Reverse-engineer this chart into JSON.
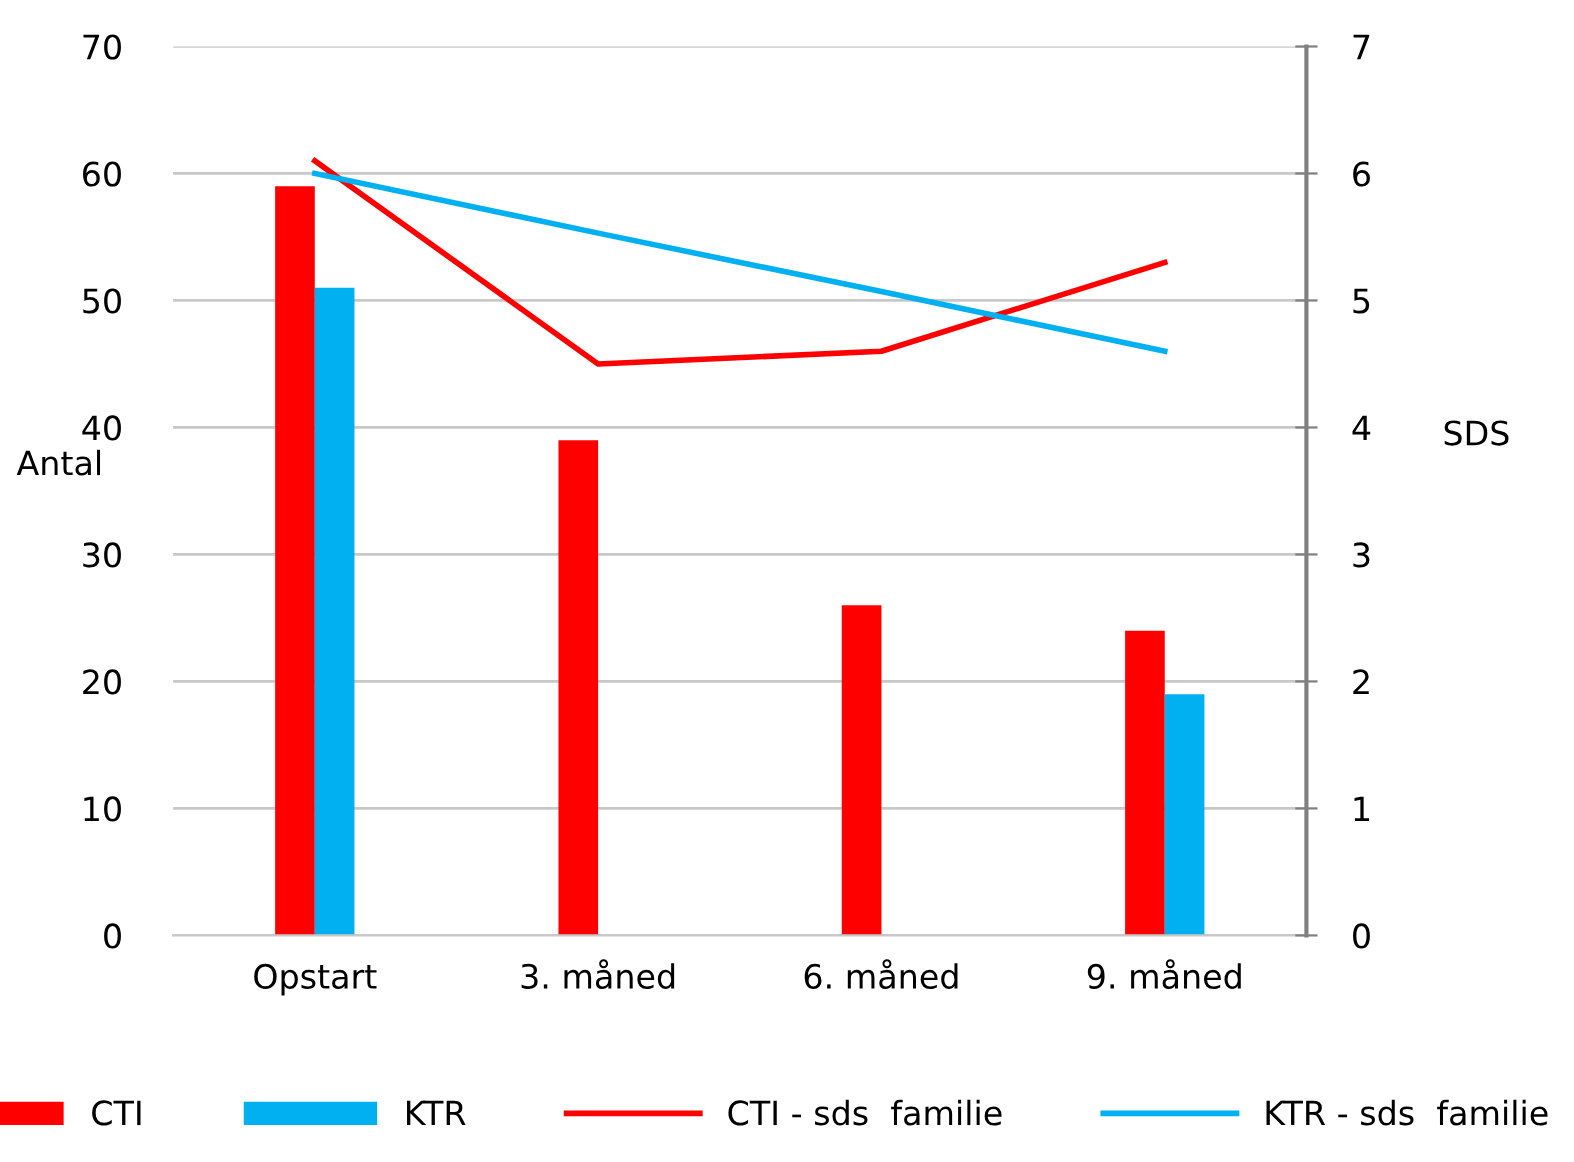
{
  "chart_data": {
    "type": "bar",
    "categories": [
      "Opstart",
      "3. måned",
      "6. måned",
      "9. måned"
    ],
    "ylabel": "Antal",
    "y2label": "SDS",
    "ylim": [
      0,
      70
    ],
    "yticks": [
      0,
      10,
      20,
      30,
      40,
      50,
      60,
      70
    ],
    "y2lim": [
      0,
      7
    ],
    "y2ticks": [
      0,
      1,
      2,
      3,
      4,
      5,
      6,
      7
    ],
    "grid": "y",
    "legend": "bottom",
    "series": [
      {
        "name": "CTI",
        "color": "#ff0000",
        "values": [
          59,
          39,
          26,
          24
        ]
      },
      {
        "name": "KTR",
        "color": "#00b0f0",
        "values": [
          51,
          null,
          null,
          19
        ]
      },
      {
        "name": "CTI - sds  familie",
        "type": "line",
        "axis": "y2",
        "color": "#ff0000",
        "values": [
          6.1,
          4.5,
          4.6,
          5.3
        ]
      },
      {
        "name": "KTR - sds  familie",
        "type": "line",
        "axis": "y2",
        "color": "#00b0f0",
        "values": [
          6.0,
          5.53,
          5.07,
          4.6
        ]
      }
    ]
  }
}
